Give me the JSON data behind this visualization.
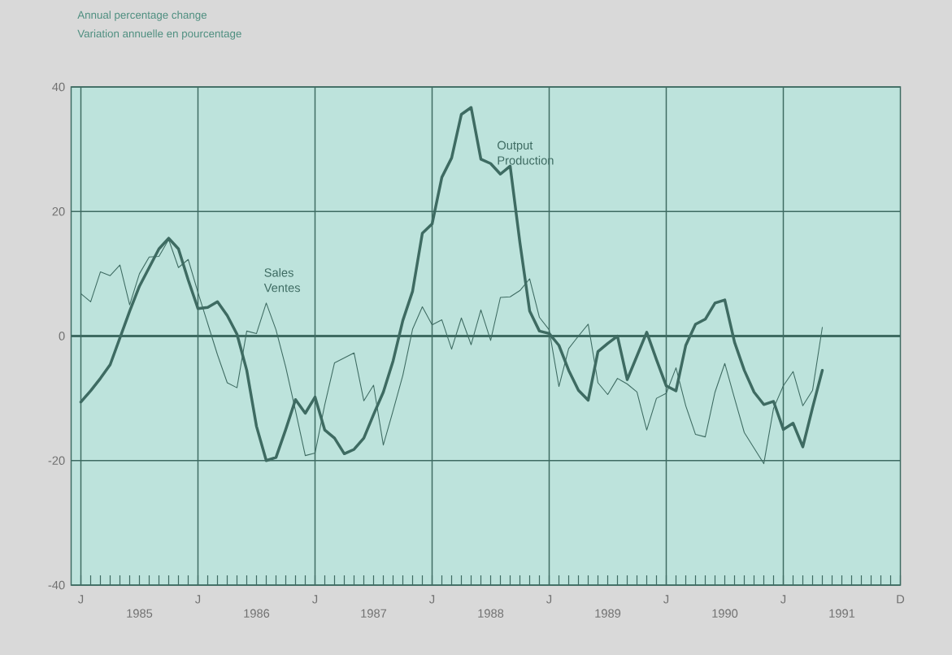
{
  "chart_data": {
    "type": "line",
    "title": "Annual percentage change",
    "subtitle": "Variation annuelle en pourcentage",
    "categories": [
      "J",
      null,
      null,
      null,
      null,
      null,
      "1985",
      null,
      null,
      null,
      null,
      null,
      "J",
      null,
      null,
      null,
      null,
      null,
      "1986",
      null,
      null,
      null,
      null,
      null,
      "J",
      null,
      null,
      null,
      null,
      null,
      "1987",
      null,
      null,
      null,
      null,
      null,
      "J",
      null,
      null,
      null,
      null,
      null,
      "1988",
      null,
      null,
      null,
      null,
      null,
      "J",
      null,
      null,
      null,
      null,
      null,
      "1989",
      null,
      null,
      null,
      null,
      null,
      "J",
      null,
      null,
      null,
      null,
      null,
      "1990",
      null,
      null,
      null,
      null,
      null,
      "J",
      null,
      null,
      null,
      null,
      null,
      "1991",
      null,
      null,
      null,
      null,
      null,
      "D"
    ],
    "series": [
      {
        "name": "Output Production",
        "color": "#3e6b62",
        "values": [
          -10.6,
          -8.8,
          -6.8,
          -4.6,
          -0.3,
          4,
          8,
          11,
          14,
          15.7,
          14,
          9,
          4.4,
          4.6,
          5.5,
          3.3,
          0.3,
          -5.5,
          -14.5,
          -20,
          -19.5,
          -15,
          -10.2,
          -12.4,
          -9.8,
          -15.1,
          -16.4,
          -18.9,
          -18.2,
          -16.4,
          -12.6,
          -9,
          -4,
          2.5,
          7.2,
          16.5,
          18,
          25.5,
          28.6,
          35.6,
          36.7,
          28.4,
          27.7,
          26,
          27.3,
          15,
          4,
          0.8,
          0.4,
          -1.5,
          -5.5,
          -8.7,
          -10.3,
          -2.5,
          -1.2,
          0,
          -7,
          -3.2,
          0.6,
          -3.8,
          -8,
          -8.8,
          -1.5,
          1.9,
          2.7,
          5.3,
          5.8,
          -1,
          -5.5,
          -9,
          -11,
          -10.5,
          -15,
          -14,
          -17.8,
          -11.5,
          -5.5,
          null,
          null,
          null,
          null,
          null,
          null,
          null,
          null
        ]
      },
      {
        "name": "Sales Ventes",
        "color": "#3e6b62",
        "values": [
          6.8,
          5.5,
          10.3,
          9.7,
          11.4,
          5,
          10,
          12.7,
          12.8,
          15.5,
          11,
          12.3,
          7,
          2,
          -3,
          -7.5,
          -8.3,
          0.8,
          0.4,
          5.3,
          1,
          -5,
          -12,
          -19.2,
          -18.8,
          -11,
          -4.3,
          -3.5,
          -2.7,
          -10.4,
          -7.9,
          -17.5,
          -12,
          -6.3,
          1.1,
          4.7,
          1.8,
          2.6,
          -2.1,
          2.9,
          -1.4,
          4.2,
          -0.7,
          6.2,
          6.3,
          7.3,
          9.2,
          3,
          1,
          -8.1,
          -2,
          0,
          1.9,
          -7.5,
          -9.4,
          -6.8,
          -7.7,
          -9,
          -15.1,
          -10,
          -9.2,
          -5.1,
          -11.2,
          -15.8,
          -16.2,
          -9,
          -4.4,
          -10,
          -15.5,
          -18,
          -20.5,
          -11.6,
          -8,
          -5.7,
          -11.2,
          -8.7,
          1.4,
          null,
          null,
          null,
          null,
          null,
          null,
          null,
          null
        ]
      }
    ],
    "ylim": [
      -40,
      40
    ],
    "yticks": [
      40,
      20,
      0,
      -20,
      -40
    ],
    "ref_lines": [
      {
        "axis": "y",
        "value": 0
      }
    ],
    "grid": true,
    "marker": "none",
    "line_style": "solid"
  }
}
